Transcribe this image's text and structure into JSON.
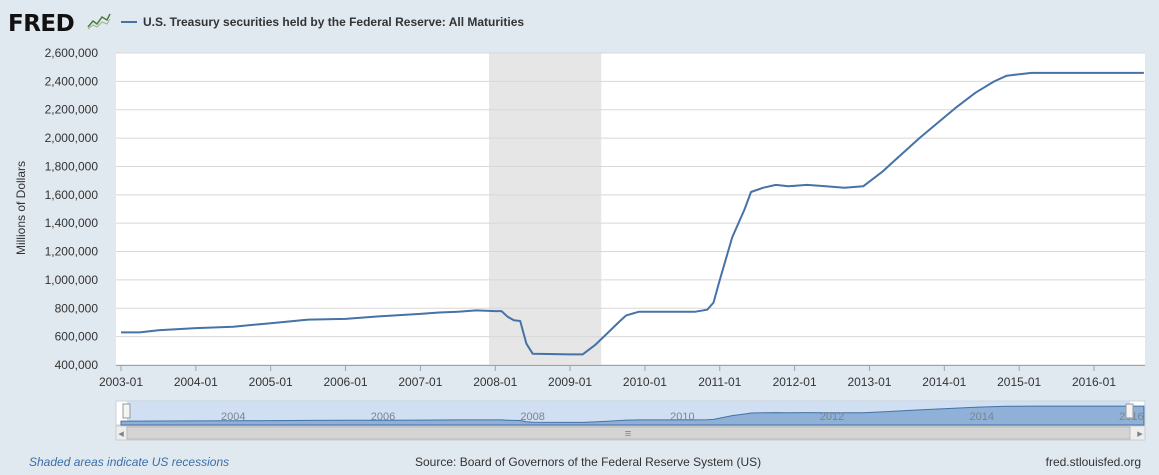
{
  "header": {
    "logo_text": "FRED",
    "series_title": "U.S. Treasury securities held by the Federal Reserve: All Maturities",
    "series_color": "#4572a7"
  },
  "footer": {
    "recession_note": "Shaded areas indicate US recessions",
    "source": "Source: Board of Governors of the Federal Reserve System (US)",
    "site": "fred.stlouisfed.org"
  },
  "navigator": {
    "year_labels": [
      "2004",
      "2006",
      "2008",
      "2010",
      "2012",
      "2014",
      "2016"
    ],
    "scroll_icons": [
      "scroll-left-arrow-icon",
      "scroll-right-arrow-icon",
      "scroll-grip-icon",
      "range-handle-icon"
    ]
  },
  "chart_data": {
    "type": "line",
    "title": "U.S. Treasury securities held by the Federal Reserve: All Maturities",
    "ylabel": "Millions of Dollars",
    "xlabel": "",
    "ylim": [
      400000,
      2600000
    ],
    "xlim": [
      "2003-01",
      "2016-09"
    ],
    "y_ticks": [
      "400,000",
      "600,000",
      "800,000",
      "1,000,000",
      "1,200,000",
      "1,400,000",
      "1,600,000",
      "1,800,000",
      "2,000,000",
      "2,200,000",
      "2,400,000",
      "2,600,000"
    ],
    "x_ticks": [
      "2003-01",
      "2004-01",
      "2005-01",
      "2006-01",
      "2007-01",
      "2008-01",
      "2009-01",
      "2010-01",
      "2011-01",
      "2012-01",
      "2013-01",
      "2014-01",
      "2015-01",
      "2016-01"
    ],
    "grid": true,
    "recessions": [
      {
        "start": "2007-12",
        "end": "2009-06"
      }
    ],
    "series": [
      {
        "name": "U.S. Treasury securities held by the Federal Reserve: All Maturities",
        "color": "#4572a7",
        "x": [
          "2003-01",
          "2003-04",
          "2003-07",
          "2004-01",
          "2004-07",
          "2005-01",
          "2005-07",
          "2006-01",
          "2006-07",
          "2007-01",
          "2007-04",
          "2007-07",
          "2007-10",
          "2008-01",
          "2008-02",
          "2008-03",
          "2008-04",
          "2008-05",
          "2008-06",
          "2008-07",
          "2009-01",
          "2009-02",
          "2009-03",
          "2009-05",
          "2009-07",
          "2009-09",
          "2009-10",
          "2009-12",
          "2010-06",
          "2010-09",
          "2010-11",
          "2010-12",
          "2011-01",
          "2011-03",
          "2011-05",
          "2011-06",
          "2011-08",
          "2011-10",
          "2011-12",
          "2012-03",
          "2012-06",
          "2012-09",
          "2012-12",
          "2013-03",
          "2013-06",
          "2013-09",
          "2013-12",
          "2014-03",
          "2014-06",
          "2014-09",
          "2014-11",
          "2015-03",
          "2015-06",
          "2015-12",
          "2016-06",
          "2016-09"
        ],
        "values": [
          630000,
          630000,
          645000,
          660000,
          670000,
          695000,
          720000,
          725000,
          745000,
          760000,
          770000,
          775000,
          785000,
          780000,
          780000,
          740000,
          715000,
          710000,
          550000,
          480000,
          475000,
          475000,
          475000,
          540000,
          625000,
          710000,
          750000,
          775000,
          775000,
          775000,
          790000,
          840000,
          1000000,
          1300000,
          1500000,
          1620000,
          1650000,
          1670000,
          1660000,
          1670000,
          1660000,
          1650000,
          1660000,
          1760000,
          1880000,
          2000000,
          2110000,
          2220000,
          2320000,
          2400000,
          2440000,
          2460000,
          2460000,
          2460000,
          2460000,
          2460000
        ]
      }
    ]
  }
}
